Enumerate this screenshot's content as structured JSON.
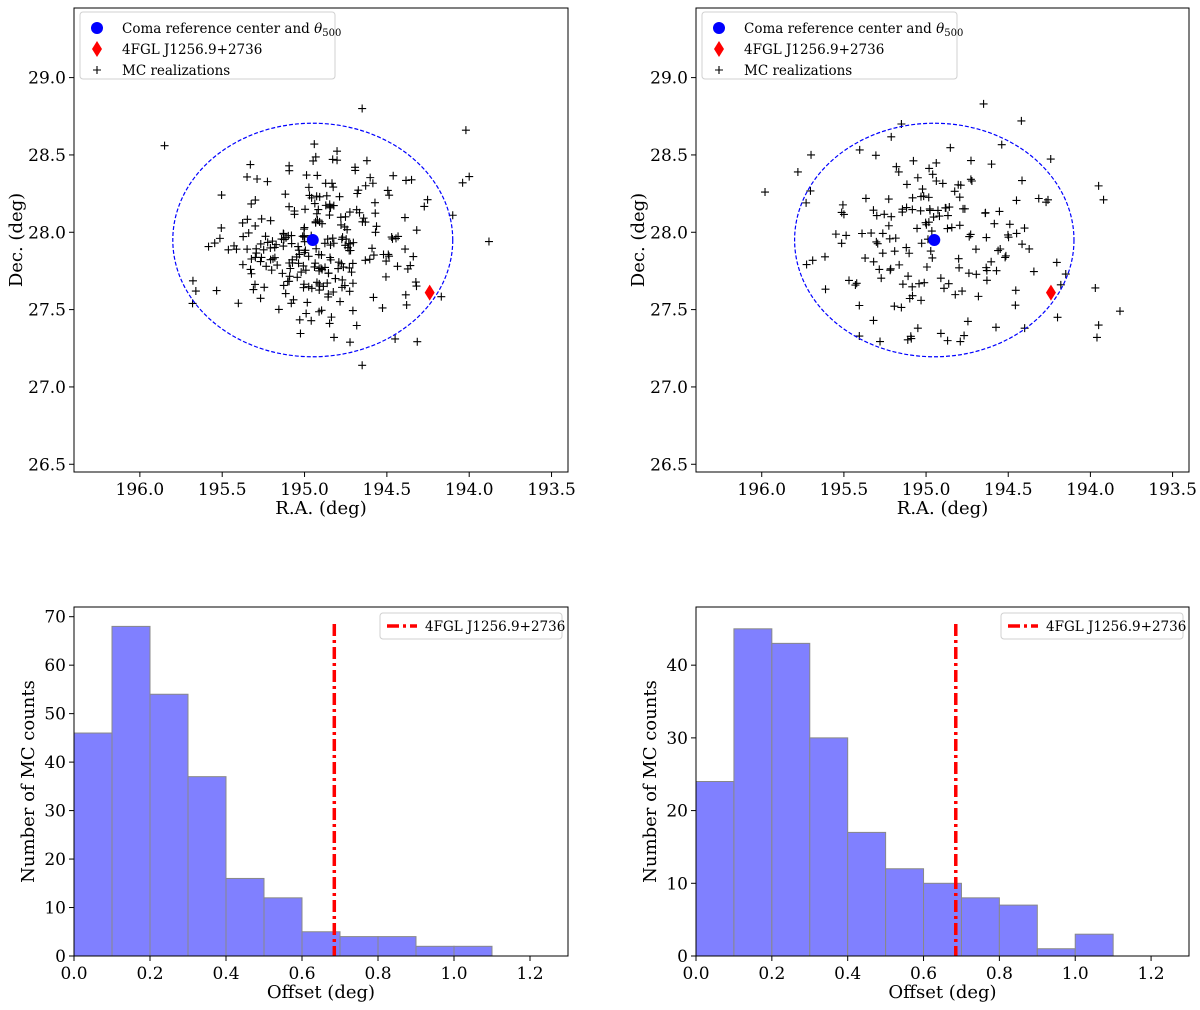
{
  "chart_data": [
    {
      "type": "scatter",
      "panel": "top-left",
      "xlabel": "R.A. (deg)",
      "ylabel": "Dec. (deg)",
      "xlim": [
        196.4,
        193.4
      ],
      "ylim": [
        26.45,
        29.45
      ],
      "x_axis_inverted": true,
      "xticks": [
        "196.0",
        "195.5",
        "195.0",
        "194.5",
        "194.0",
        "193.5"
      ],
      "yticks": [
        "26.5",
        "27.0",
        "27.5",
        "28.0",
        "28.5",
        "29.0"
      ],
      "legend": {
        "placement": "top-left",
        "entries": [
          {
            "label_prefix": "Coma reference center and ",
            "label_math": "θ",
            "label_sub": "500",
            "marker": "circle",
            "color": "#0000ff"
          },
          {
            "label": "4FGL J1256.9+2736",
            "marker": "diamond",
            "color": "#ff0000"
          },
          {
            "label": "MC realizations",
            "marker": "plus",
            "color": "#000000"
          }
        ]
      },
      "center": {
        "ra": 194.95,
        "dec": 27.95
      },
      "theta500_ellipse": {
        "ra_center": 194.95,
        "dec_center": 27.95,
        "ra_halfwidth": 0.85,
        "dec_halfwidth": 0.755,
        "color": "#0000ff"
      },
      "fgl_source": {
        "ra": 194.24,
        "dec": 27.61
      },
      "mc_points": {
        "seed": 7,
        "n": 265,
        "sigma": 0.3
      },
      "mc_outliers": [
        [
          195.85,
          28.56
        ],
        [
          194.65,
          28.8
        ],
        [
          194.02,
          28.66
        ],
        [
          194.0,
          28.36
        ],
        [
          193.88,
          27.94
        ],
        [
          195.68,
          27.54
        ],
        [
          195.66,
          27.62
        ],
        [
          194.38,
          27.53
        ],
        [
          194.65,
          27.14
        ],
        [
          194.45,
          27.31
        ],
        [
          194.1,
          28.11
        ],
        [
          194.04,
          28.32
        ]
      ]
    },
    {
      "type": "scatter",
      "panel": "top-right",
      "xlabel": "R.A. (deg)",
      "ylabel": "Dec. (deg)",
      "xlim": [
        196.4,
        193.4
      ],
      "ylim": [
        26.45,
        29.45
      ],
      "x_axis_inverted": true,
      "xticks": [
        "196.0",
        "195.5",
        "195.0",
        "194.5",
        "194.0",
        "193.5"
      ],
      "yticks": [
        "26.5",
        "27.0",
        "27.5",
        "28.0",
        "28.5",
        "29.0"
      ],
      "legend": {
        "placement": "top-left",
        "entries": [
          {
            "label_prefix": "Coma reference center and ",
            "label_math": "θ",
            "label_sub": "500",
            "marker": "circle",
            "color": "#0000ff"
          },
          {
            "label": "4FGL J1256.9+2736",
            "marker": "diamond",
            "color": "#ff0000"
          },
          {
            "label": "MC realizations",
            "marker": "plus",
            "color": "#000000"
          }
        ]
      },
      "center": {
        "ra": 194.95,
        "dec": 27.95
      },
      "theta500_ellipse": {
        "ra_center": 194.95,
        "dec_center": 27.95,
        "ra_halfwidth": 0.85,
        "dec_halfwidth": 0.755,
        "color": "#0000ff"
      },
      "fgl_source": {
        "ra": 194.24,
        "dec": 27.61
      },
      "mc_points": {
        "seed": 23,
        "n": 180,
        "sigma": 0.38
      },
      "mc_outliers": [
        [
          195.98,
          28.26
        ],
        [
          195.78,
          28.39
        ],
        [
          195.7,
          28.5
        ],
        [
          195.73,
          28.19
        ],
        [
          195.15,
          28.7
        ],
        [
          194.65,
          28.83
        ],
        [
          194.42,
          28.72
        ],
        [
          193.95,
          28.3
        ],
        [
          193.92,
          28.21
        ],
        [
          193.97,
          27.64
        ],
        [
          193.82,
          27.49
        ],
        [
          193.95,
          27.4
        ],
        [
          193.96,
          27.32
        ],
        [
          194.2,
          27.45
        ],
        [
          194.18,
          27.66
        ],
        [
          194.15,
          27.73
        ],
        [
          194.4,
          27.38
        ],
        [
          195.05,
          27.38
        ],
        [
          195.32,
          27.43
        ]
      ]
    },
    {
      "type": "bar",
      "panel": "bottom-left",
      "xlabel": "Offset (deg)",
      "ylabel": "Number of MC counts",
      "bin_edges": [
        0.0,
        0.1,
        0.2,
        0.3,
        0.4,
        0.5,
        0.6,
        0.7,
        0.8,
        0.9,
        1.0,
        1.1
      ],
      "values": [
        46,
        68,
        54,
        37,
        16,
        12,
        5,
        4,
        4,
        2,
        2
      ],
      "xlim": [
        0.0,
        1.3
      ],
      "ylim": [
        0,
        72
      ],
      "xticks": [
        "0.0",
        "0.2",
        "0.4",
        "0.6",
        "0.8",
        "1.0",
        "1.2"
      ],
      "ytick_values": [
        0,
        10,
        20,
        30,
        40,
        50,
        60,
        70
      ],
      "yticks": [
        "0",
        "10",
        "20",
        "30",
        "40",
        "50",
        "60",
        "70"
      ],
      "bar_color": "#8080ff",
      "vline": {
        "x": 0.685,
        "label": "4FGL J1256.9+2736",
        "color": "#ff0000",
        "style": "dash-dot"
      },
      "legend_placement": "top-right"
    },
    {
      "type": "bar",
      "panel": "bottom-right",
      "xlabel": "Offset (deg)",
      "ylabel": "Number of MC counts",
      "bin_edges": [
        0.0,
        0.1,
        0.2,
        0.3,
        0.4,
        0.5,
        0.6,
        0.7,
        0.8,
        0.9,
        1.0,
        1.1
      ],
      "values": [
        24,
        45,
        43,
        30,
        17,
        12,
        10,
        8,
        7,
        1,
        3
      ],
      "xlim": [
        0.0,
        1.3
      ],
      "ylim": [
        0,
        48
      ],
      "xticks": [
        "0.0",
        "0.2",
        "0.4",
        "0.6",
        "0.8",
        "1.0",
        "1.2"
      ],
      "ytick_values": [
        0,
        10,
        20,
        30,
        40
      ],
      "yticks": [
        "0",
        "10",
        "20",
        "30",
        "40"
      ],
      "bar_color": "#8080ff",
      "vline": {
        "x": 0.685,
        "label": "4FGL J1256.9+2736",
        "color": "#ff0000",
        "style": "dash-dot"
      },
      "legend_placement": "top-right"
    }
  ]
}
